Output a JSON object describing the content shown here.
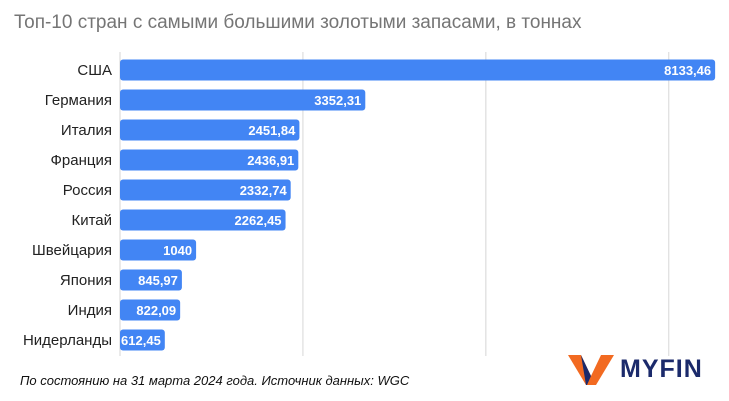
{
  "chart_data": {
    "type": "bar",
    "orientation": "horizontal",
    "title": "Топ-10 стран с самыми большими золотыми запасами, в тоннах",
    "categories": [
      "США",
      "Германия",
      "Италия",
      "Франция",
      "Россия",
      "Китай",
      "Швейцария",
      "Япония",
      "Индия",
      "Нидерланды"
    ],
    "values": [
      8133.46,
      3352.31,
      2451.84,
      2436.91,
      2332.74,
      2262.45,
      1040,
      845.97,
      822.09,
      612.45
    ],
    "value_labels": [
      "8133,46",
      "3352,31",
      "2451,84",
      "2436,91",
      "2332,74",
      "2262,45",
      "1040",
      "845,97",
      "822,09",
      "612,45"
    ],
    "xlim": [
      0,
      8200
    ],
    "grid": true,
    "bar_color": "#4285f4"
  },
  "footer": {
    "source": "По состоянию на 31 марта 2024 года. Источник данных: WGC",
    "brand": "MYFIN"
  },
  "colors": {
    "brand_orange": "#f26a21",
    "brand_navy": "#1b2a6b"
  }
}
